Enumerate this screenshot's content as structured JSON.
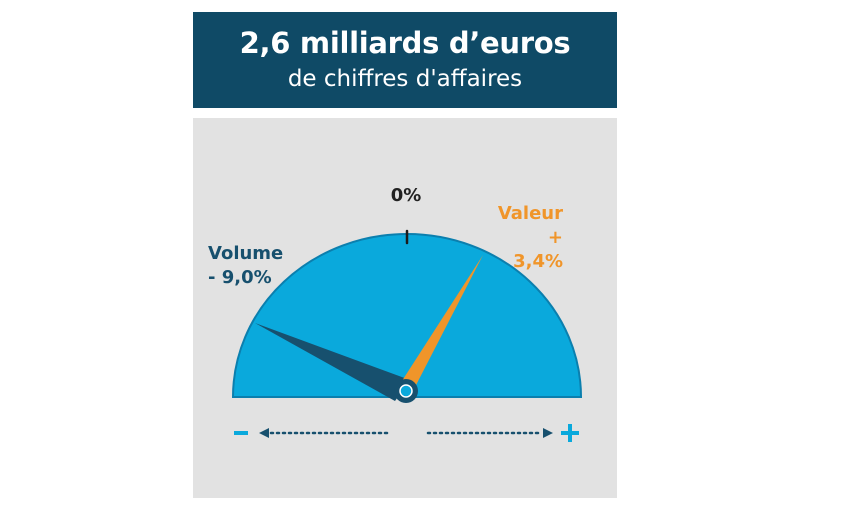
{
  "header": {
    "title": "2,6 milliards d’euros",
    "subtitle": "de chiffres d'affaires"
  },
  "gauge": {
    "zero_label": "0%",
    "volume": {
      "name": "Volume",
      "value_text": "- 9,0%",
      "value": -9.0,
      "color": "#17506e"
    },
    "valeur": {
      "name": "Valeur",
      "value_text": "+ 3,4%",
      "value": 3.4,
      "color": "#f0952a"
    },
    "dial_color": "#0aa9dc",
    "minus_symbol": "−",
    "plus_symbol": "+"
  }
}
